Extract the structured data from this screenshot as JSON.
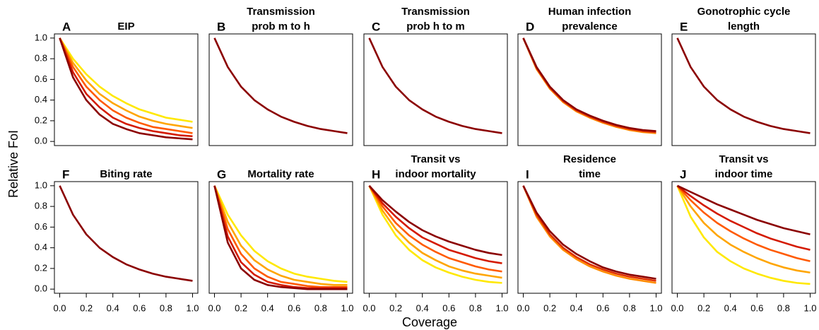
{
  "ylabel": "Relative FoI",
  "xlabel": "Coverage",
  "chart_data": [
    {
      "type": "line",
      "panel": "A",
      "title": [
        "EIP"
      ],
      "x": [
        0,
        0.1,
        0.2,
        0.3,
        0.4,
        0.5,
        0.6,
        0.7,
        0.8,
        0.9,
        1
      ],
      "xlim": [
        -0.04,
        1.04
      ],
      "ylim": [
        -0.04,
        1.04
      ],
      "yticks": [
        {
          "value": 0,
          "label": "0.0"
        },
        0.2,
        0.4,
        0.6,
        0.8,
        {
          "value": 1,
          "label": "1.0"
        }
      ],
      "series": [
        {
          "color": "#ffe800",
          "values": [
            1,
            0.8,
            0.65,
            0.53,
            0.44,
            0.37,
            0.31,
            0.27,
            0.23,
            0.21,
            0.19
          ]
        },
        {
          "color": "#ffa500",
          "values": [
            1,
            0.76,
            0.59,
            0.46,
            0.37,
            0.3,
            0.24,
            0.2,
            0.17,
            0.15,
            0.13
          ]
        },
        {
          "color": "#ff5a00",
          "values": [
            1,
            0.72,
            0.53,
            0.4,
            0.3,
            0.23,
            0.18,
            0.14,
            0.12,
            0.1,
            0.08
          ]
        },
        {
          "color": "#d41a00",
          "values": [
            1,
            0.67,
            0.46,
            0.33,
            0.23,
            0.17,
            0.13,
            0.1,
            0.08,
            0.06,
            0.05
          ]
        },
        {
          "color": "#8b0000",
          "values": [
            1,
            0.62,
            0.4,
            0.26,
            0.17,
            0.12,
            0.08,
            0.06,
            0.04,
            0.03,
            0.02
          ]
        }
      ]
    },
    {
      "type": "line",
      "panel": "B",
      "title": [
        "Transmission",
        "prob m to h"
      ],
      "x": [
        0,
        0.1,
        0.2,
        0.3,
        0.4,
        0.5,
        0.6,
        0.7,
        0.8,
        0.9,
        1
      ],
      "xlim": [
        -0.04,
        1.04
      ],
      "ylim": [
        -0.04,
        1.04
      ],
      "series": [
        {
          "color": "#8b0000",
          "values": [
            1,
            0.72,
            0.53,
            0.4,
            0.31,
            0.24,
            0.19,
            0.15,
            0.12,
            0.1,
            0.08
          ]
        }
      ]
    },
    {
      "type": "line",
      "panel": "C",
      "title": [
        "Transmission",
        "prob h to m"
      ],
      "x": [
        0,
        0.1,
        0.2,
        0.3,
        0.4,
        0.5,
        0.6,
        0.7,
        0.8,
        0.9,
        1
      ],
      "xlim": [
        -0.04,
        1.04
      ],
      "ylim": [
        -0.04,
        1.04
      ],
      "series": [
        {
          "color": "#8b0000",
          "values": [
            1,
            0.72,
            0.53,
            0.4,
            0.31,
            0.24,
            0.19,
            0.15,
            0.12,
            0.1,
            0.08
          ]
        }
      ]
    },
    {
      "type": "line",
      "panel": "D",
      "title": [
        "Human infection",
        "prevalence"
      ],
      "x": [
        0,
        0.1,
        0.2,
        0.3,
        0.4,
        0.5,
        0.6,
        0.7,
        0.8,
        0.9,
        1
      ],
      "xlim": [
        -0.04,
        1.04
      ],
      "ylim": [
        -0.04,
        1.04
      ],
      "series": [
        {
          "color": "#ff8c00",
          "values": [
            1,
            0.7,
            0.51,
            0.38,
            0.29,
            0.23,
            0.18,
            0.14,
            0.11,
            0.09,
            0.08
          ]
        },
        {
          "color": "#e03000",
          "values": [
            1,
            0.71,
            0.52,
            0.39,
            0.3,
            0.24,
            0.19,
            0.15,
            0.12,
            0.1,
            0.09
          ]
        },
        {
          "color": "#8b0000",
          "values": [
            1,
            0.72,
            0.53,
            0.4,
            0.31,
            0.25,
            0.2,
            0.16,
            0.13,
            0.11,
            0.1
          ]
        }
      ]
    },
    {
      "type": "line",
      "panel": "E",
      "title": [
        "Gonotrophic cycle",
        "length"
      ],
      "x": [
        0,
        0.1,
        0.2,
        0.3,
        0.4,
        0.5,
        0.6,
        0.7,
        0.8,
        0.9,
        1
      ],
      "xlim": [
        -0.04,
        1.04
      ],
      "ylim": [
        -0.04,
        1.04
      ],
      "series": [
        {
          "color": "#8b0000",
          "values": [
            1,
            0.72,
            0.53,
            0.4,
            0.31,
            0.24,
            0.19,
            0.15,
            0.12,
            0.1,
            0.08
          ]
        }
      ]
    },
    {
      "type": "line",
      "panel": "F",
      "title": [
        "Biting rate"
      ],
      "x": [
        0,
        0.1,
        0.2,
        0.3,
        0.4,
        0.5,
        0.6,
        0.7,
        0.8,
        0.9,
        1
      ],
      "xlim": [
        -0.04,
        1.04
      ],
      "ylim": [
        -0.04,
        1.04
      ],
      "yticks": [
        {
          "value": 0,
          "label": "0.0"
        },
        0.2,
        0.4,
        0.6,
        0.8,
        {
          "value": 1,
          "label": "1.0"
        }
      ],
      "xticks": [
        {
          "value": 0,
          "label": "0.0"
        },
        0.2,
        0.4,
        0.6,
        0.8,
        {
          "value": 1,
          "label": "1.0"
        }
      ],
      "series": [
        {
          "color": "#8b0000",
          "values": [
            1,
            0.72,
            0.53,
            0.4,
            0.31,
            0.24,
            0.19,
            0.15,
            0.12,
            0.1,
            0.08
          ]
        }
      ]
    },
    {
      "type": "line",
      "panel": "G",
      "title": [
        "Mortality rate"
      ],
      "x": [
        0,
        0.1,
        0.2,
        0.3,
        0.4,
        0.5,
        0.6,
        0.7,
        0.8,
        0.9,
        1
      ],
      "xlim": [
        -0.04,
        1.04
      ],
      "ylim": [
        -0.04,
        1.04
      ],
      "xticks": [
        {
          "value": 0,
          "label": "0.0"
        },
        0.2,
        0.4,
        0.6,
        0.8,
        {
          "value": 1,
          "label": "1.0"
        }
      ],
      "series": [
        {
          "color": "#ffe800",
          "values": [
            1,
            0.72,
            0.52,
            0.37,
            0.27,
            0.2,
            0.15,
            0.12,
            0.1,
            0.08,
            0.07
          ]
        },
        {
          "color": "#ffa500",
          "values": [
            1,
            0.65,
            0.42,
            0.28,
            0.19,
            0.13,
            0.09,
            0.07,
            0.05,
            0.04,
            0.04
          ]
        },
        {
          "color": "#ff5a00",
          "values": [
            1,
            0.58,
            0.34,
            0.2,
            0.12,
            0.07,
            0.05,
            0.03,
            0.02,
            0.02,
            0.02
          ]
        },
        {
          "color": "#d41a00",
          "values": [
            1,
            0.51,
            0.26,
            0.14,
            0.07,
            0.04,
            0.02,
            0.01,
            0.01,
            0.01,
            0.01
          ]
        },
        {
          "color": "#8b0000",
          "values": [
            1,
            0.45,
            0.2,
            0.09,
            0.04,
            0.02,
            0.01,
            0,
            0,
            0,
            0
          ]
        }
      ]
    },
    {
      "type": "line",
      "panel": "H",
      "title": [
        "Transit vs",
        "indoor mortality"
      ],
      "x": [
        0,
        0.1,
        0.2,
        0.3,
        0.4,
        0.5,
        0.6,
        0.7,
        0.8,
        0.9,
        1
      ],
      "xlim": [
        -0.04,
        1.04
      ],
      "ylim": [
        -0.04,
        1.04
      ],
      "xticks": [
        {
          "value": 0,
          "label": "0.0"
        },
        0.2,
        0.4,
        0.6,
        0.8,
        {
          "value": 1,
          "label": "1.0"
        }
      ],
      "series": [
        {
          "color": "#ffe800",
          "values": [
            1,
            0.72,
            0.52,
            0.38,
            0.28,
            0.21,
            0.16,
            0.12,
            0.09,
            0.07,
            0.06
          ]
        },
        {
          "color": "#ffa500",
          "values": [
            1,
            0.76,
            0.58,
            0.45,
            0.35,
            0.28,
            0.22,
            0.18,
            0.15,
            0.13,
            0.11
          ]
        },
        {
          "color": "#ff5a00",
          "values": [
            1,
            0.8,
            0.64,
            0.52,
            0.43,
            0.36,
            0.3,
            0.26,
            0.22,
            0.19,
            0.17
          ]
        },
        {
          "color": "#d41a00",
          "values": [
            1,
            0.83,
            0.7,
            0.59,
            0.5,
            0.44,
            0.38,
            0.34,
            0.3,
            0.27,
            0.25
          ]
        },
        {
          "color": "#8b0000",
          "values": [
            1,
            0.86,
            0.75,
            0.65,
            0.57,
            0.51,
            0.46,
            0.42,
            0.38,
            0.35,
            0.33
          ]
        }
      ]
    },
    {
      "type": "line",
      "panel": "I",
      "title": [
        "Residence",
        "time"
      ],
      "x": [
        0,
        0.1,
        0.2,
        0.3,
        0.4,
        0.5,
        0.6,
        0.7,
        0.8,
        0.9,
        1
      ],
      "xlim": [
        -0.04,
        1.04
      ],
      "ylim": [
        -0.04,
        1.04
      ],
      "xticks": [
        {
          "value": 0,
          "label": "0.0"
        },
        0.2,
        0.4,
        0.6,
        0.8,
        {
          "value": 1,
          "label": "1.0"
        }
      ],
      "series": [
        {
          "color": "#ff8c00",
          "values": [
            1,
            0.7,
            0.51,
            0.38,
            0.29,
            0.22,
            0.17,
            0.13,
            0.1,
            0.08,
            0.06
          ]
        },
        {
          "color": "#e03000",
          "values": [
            1,
            0.72,
            0.53,
            0.4,
            0.31,
            0.24,
            0.19,
            0.15,
            0.12,
            0.1,
            0.08
          ]
        },
        {
          "color": "#8b0000",
          "values": [
            1,
            0.74,
            0.56,
            0.43,
            0.34,
            0.27,
            0.21,
            0.17,
            0.14,
            0.12,
            0.1
          ]
        }
      ]
    },
    {
      "type": "line",
      "panel": "J",
      "title": [
        "Transit vs",
        "indoor time"
      ],
      "x": [
        0,
        0.1,
        0.2,
        0.3,
        0.4,
        0.5,
        0.6,
        0.7,
        0.8,
        0.9,
        1
      ],
      "xlim": [
        -0.04,
        1.04
      ],
      "ylim": [
        -0.04,
        1.04
      ],
      "xticks": [
        {
          "value": 0,
          "label": "0.0"
        },
        0.2,
        0.4,
        0.6,
        0.8,
        {
          "value": 1,
          "label": "1.0"
        }
      ],
      "series": [
        {
          "color": "#ffe800",
          "values": [
            1,
            0.7,
            0.5,
            0.36,
            0.27,
            0.2,
            0.15,
            0.11,
            0.08,
            0.06,
            0.05
          ]
        },
        {
          "color": "#ffa500",
          "values": [
            1,
            0.8,
            0.64,
            0.52,
            0.43,
            0.36,
            0.3,
            0.25,
            0.21,
            0.18,
            0.16
          ]
        },
        {
          "color": "#ff5a00",
          "values": [
            1,
            0.86,
            0.74,
            0.64,
            0.56,
            0.49,
            0.43,
            0.38,
            0.34,
            0.3,
            0.27
          ]
        },
        {
          "color": "#d41a00",
          "values": [
            1,
            0.9,
            0.81,
            0.73,
            0.66,
            0.6,
            0.54,
            0.49,
            0.45,
            0.41,
            0.38
          ]
        },
        {
          "color": "#8b0000",
          "values": [
            1,
            0.94,
            0.88,
            0.82,
            0.77,
            0.72,
            0.67,
            0.63,
            0.59,
            0.56,
            0.53
          ]
        }
      ]
    }
  ]
}
